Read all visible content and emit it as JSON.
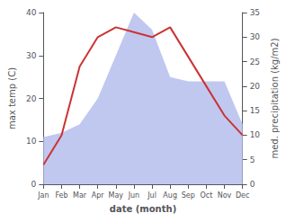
{
  "chart_data": {
    "type": "line",
    "categories": [
      "Jan",
      "Feb",
      "Mar",
      "Apr",
      "May",
      "Jun",
      "Jul",
      "Aug",
      "Sep",
      "Oct",
      "Nov",
      "Dec"
    ],
    "xlabel": "date (month)",
    "ylabel": "max temp (C)",
    "y2label": "med. precipitation (kg/m2)",
    "series": [
      {
        "type": "area",
        "color": "#c0c8f0",
        "values": [
          11,
          12,
          14,
          20,
          30,
          40,
          36,
          25,
          24,
          24,
          24,
          14
        ]
      },
      {
        "type": "line",
        "color": "#cc3333",
        "axis": "y2",
        "values": [
          4,
          10,
          24,
          30,
          32,
          31,
          30,
          32,
          26,
          20,
          14,
          10
        ]
      }
    ],
    "ylim": [
      0,
      40
    ],
    "yticks": [
      0,
      10,
      20,
      30,
      40
    ],
    "y2lim": [
      0,
      35
    ],
    "y2ticks": [
      0,
      5,
      10,
      15,
      20,
      25,
      30,
      35
    ],
    "grid": false
  }
}
